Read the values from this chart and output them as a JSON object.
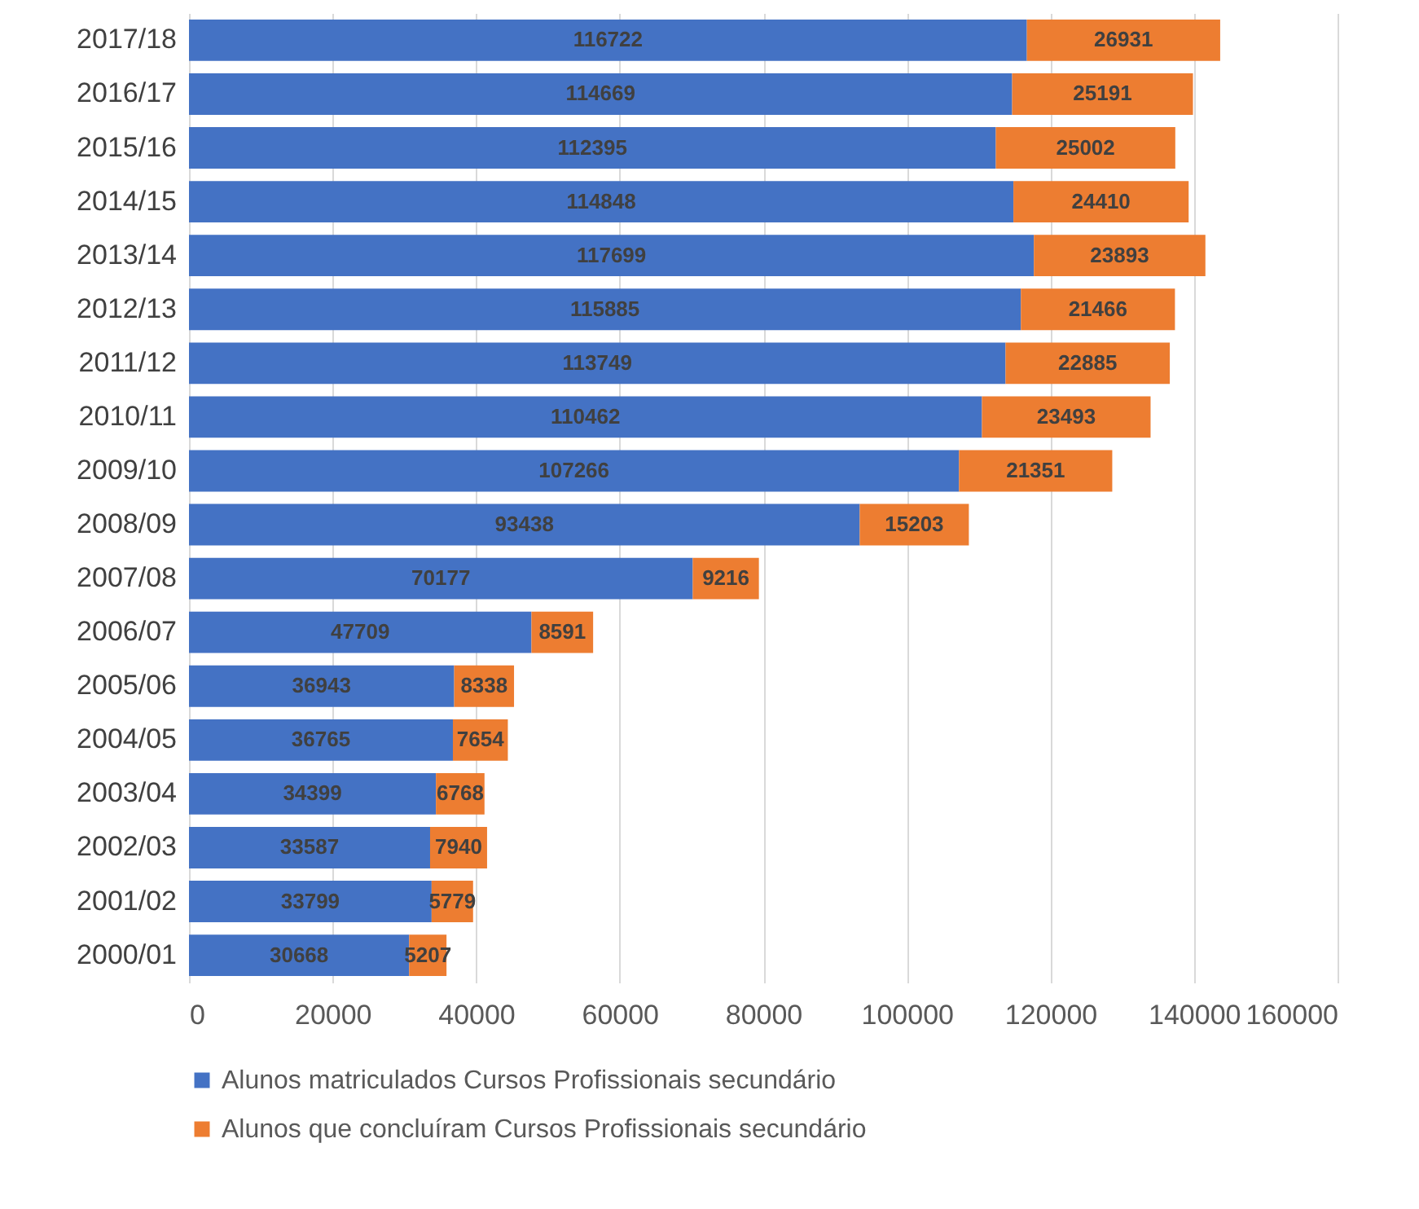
{
  "chart_data": {
    "type": "bar",
    "orientation": "horizontal",
    "stacked": true,
    "data_labels": true,
    "grid": "x",
    "legend": "bottom",
    "categories": [
      "2017/18",
      "2016/17",
      "2015/16",
      "2014/15",
      "2013/14",
      "2012/13",
      "2011/12",
      "2010/11",
      "2009/10",
      "2008/09",
      "2007/08",
      "2006/07",
      "2005/06",
      "2004/05",
      "2003/04",
      "2002/03",
      "2001/02",
      "2000/01"
    ],
    "xlim": [
      0,
      160000
    ],
    "xticks": [
      0,
      20000,
      40000,
      60000,
      80000,
      100000,
      120000,
      140000,
      160000
    ],
    "series": [
      {
        "name": "Alunos matriculados Cursos Profissionais secundário",
        "color": "#4472c4",
        "values": [
          116722,
          114669,
          112395,
          114848,
          117699,
          115885,
          113749,
          110462,
          107266,
          93438,
          70177,
          47709,
          36943,
          36765,
          34399,
          33587,
          33799,
          30668
        ]
      },
      {
        "name": "Alunos que concluíram Cursos Profissionais secundário",
        "color": "#ed7d31",
        "values": [
          26931,
          25191,
          25002,
          24410,
          23893,
          21466,
          22885,
          23493,
          21351,
          15203,
          9216,
          8591,
          8338,
          7654,
          6768,
          7940,
          5779,
          5207
        ]
      }
    ]
  }
}
